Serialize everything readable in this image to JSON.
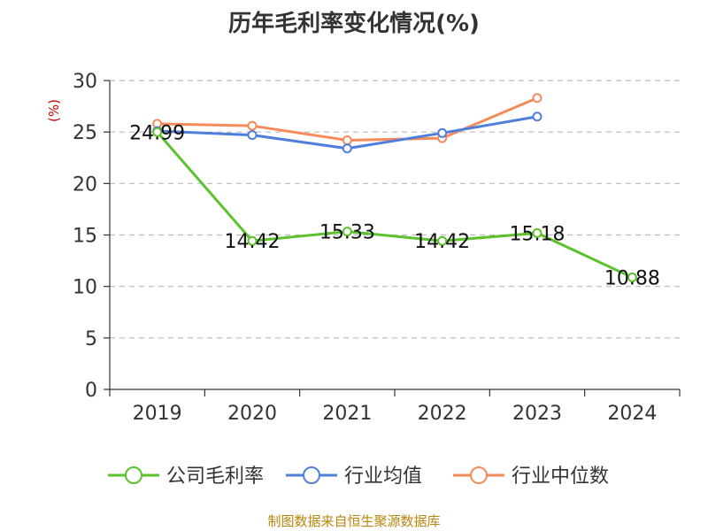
{
  "chart_data": {
    "type": "line",
    "title": "历年毛利率变化情况(%)",
    "ylabel": "(%)",
    "xlabel": "",
    "categories": [
      "2019",
      "2020",
      "2021",
      "2022",
      "2023",
      "2024"
    ],
    "ylim": [
      0,
      30
    ],
    "yticks": [
      0,
      5,
      10,
      15,
      20,
      25,
      30
    ],
    "grid": true,
    "legend_position": "bottom",
    "series": [
      {
        "name": "公司毛利率",
        "color": "#5cc22c",
        "values": [
          24.99,
          14.42,
          15.33,
          14.42,
          15.18,
          10.88
        ],
        "labels": [
          "24.99",
          "14.42",
          "15.33",
          "14.42",
          "15.18",
          "10.88"
        ]
      },
      {
        "name": "行业均值",
        "color": "#4f7fdb",
        "values": [
          25.1,
          24.7,
          23.4,
          24.9,
          26.5,
          null
        ]
      },
      {
        "name": "行业中位数",
        "color": "#f58b5a",
        "values": [
          25.8,
          25.6,
          24.2,
          24.4,
          28.3,
          null
        ]
      }
    ]
  },
  "source": "制图数据来自恒生聚源数据库"
}
